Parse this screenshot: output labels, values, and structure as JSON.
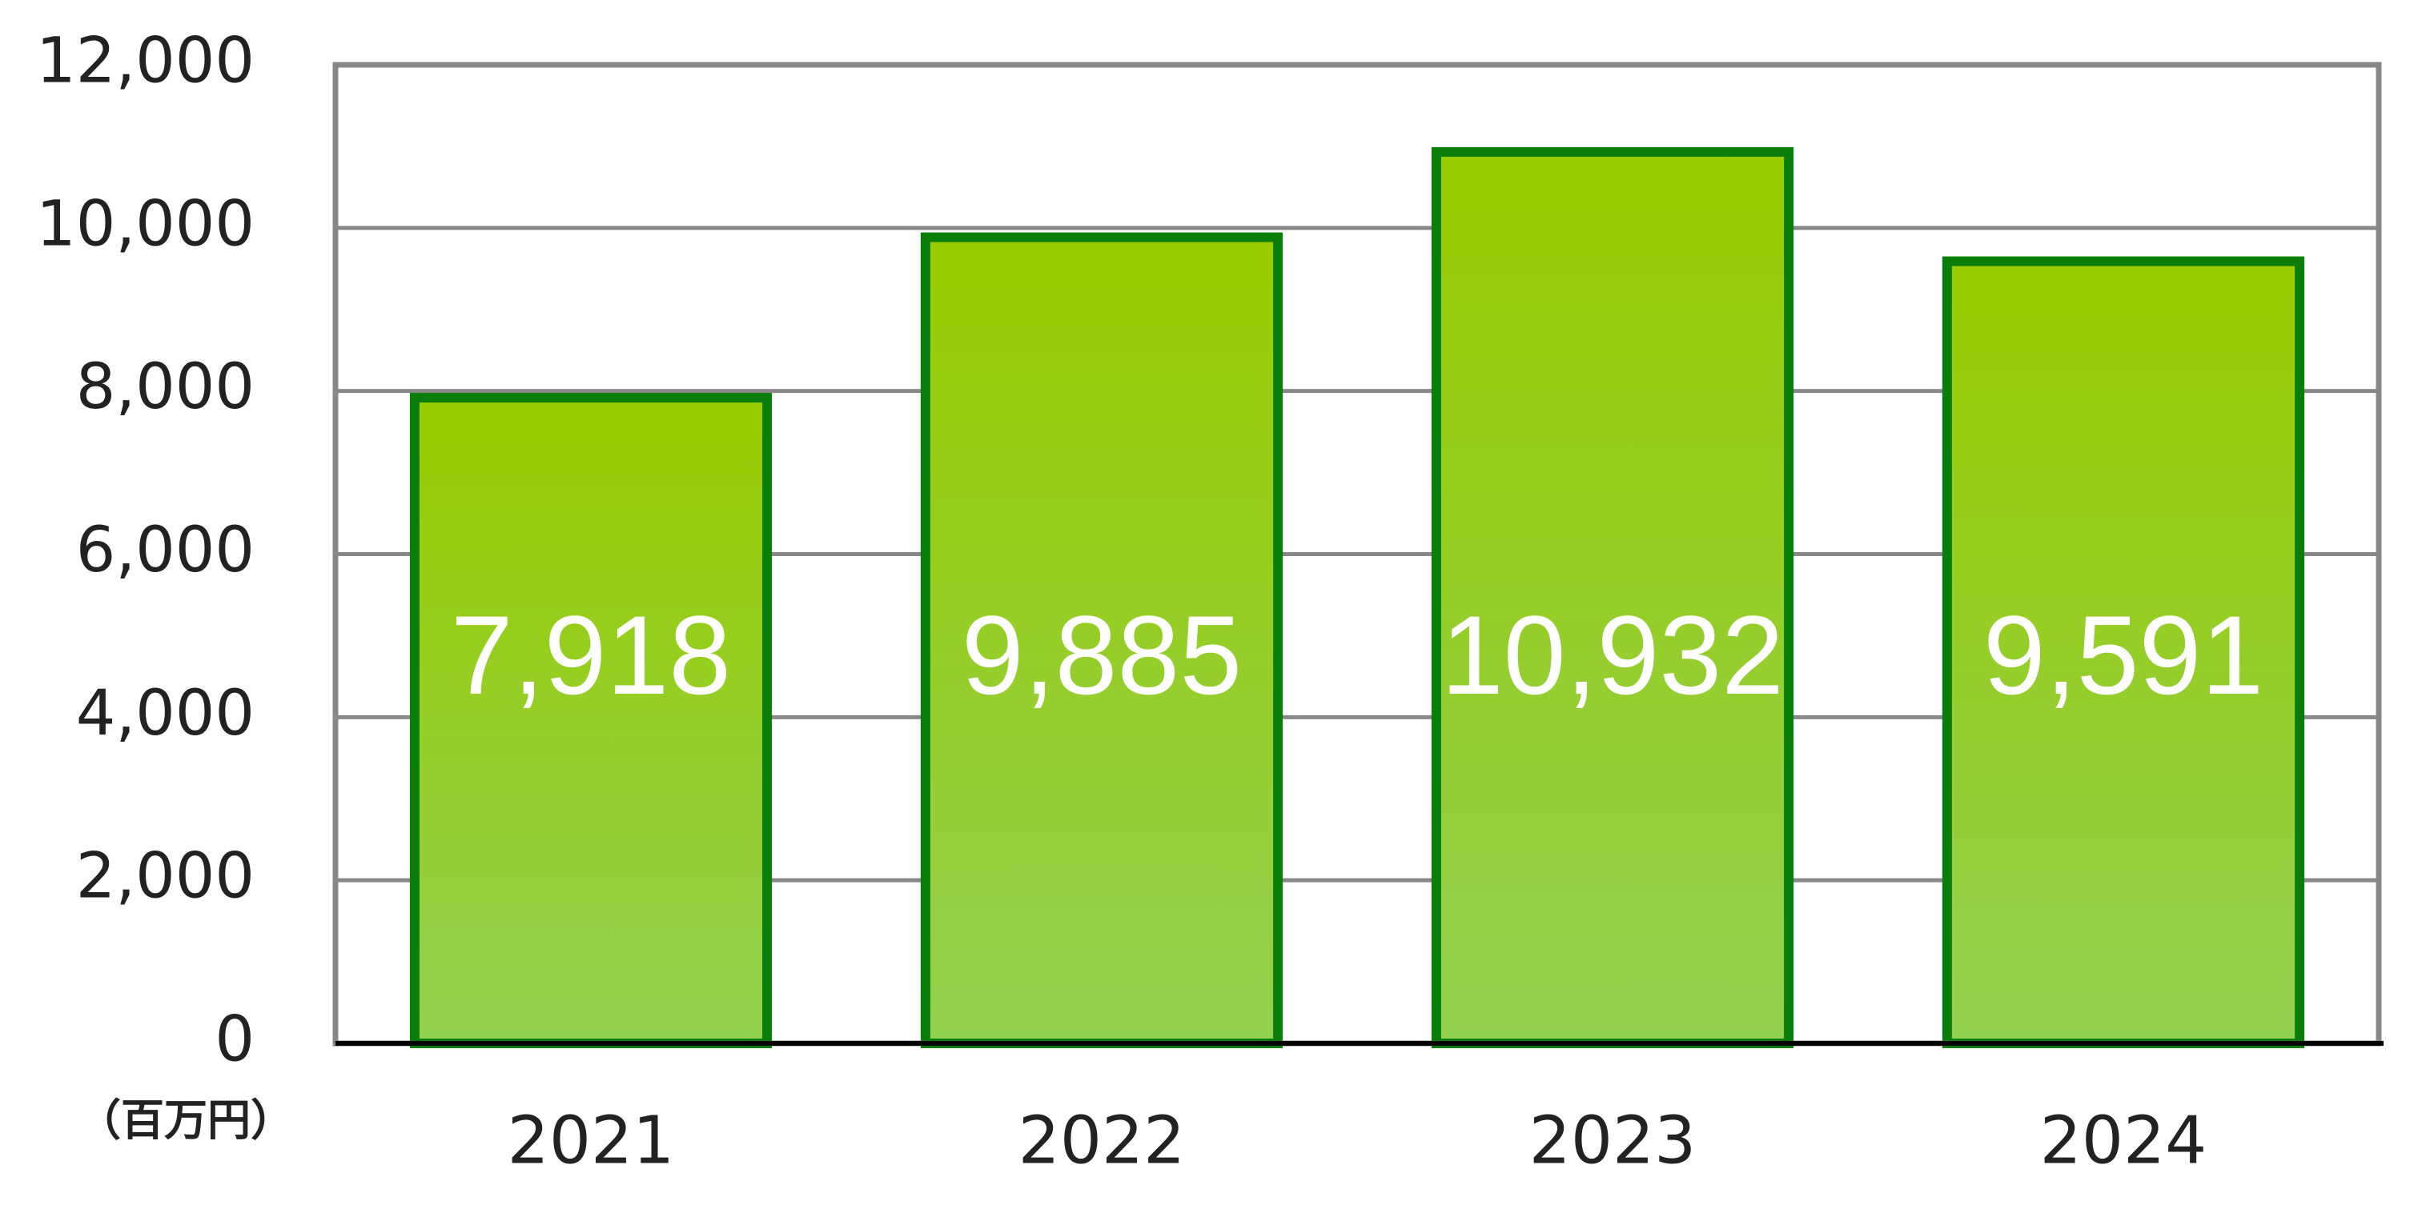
{
  "chart_data": {
    "type": "bar",
    "unit_label": "（百万円）",
    "categories": [
      "2021",
      "2022",
      "2023",
      "2024"
    ],
    "values": [
      7918,
      9885,
      10932,
      9591
    ],
    "value_labels": [
      "7,918",
      "9,885",
      "10,932",
      "9,591"
    ],
    "color": "#99cc00",
    "ylim": [
      0,
      12000
    ],
    "yticks": [
      0,
      {
        "value": 2000,
        "label": "2,000"
      },
      {
        "value": 4000,
        "label": "4,000"
      },
      {
        "value": 6000,
        "label": "6,000"
      },
      {
        "value": 8000,
        "label": "8,000"
      },
      {
        "value": 10000,
        "label": "10,000"
      },
      {
        "value": 12000,
        "label": "12,000"
      }
    ],
    "grid": true
  }
}
